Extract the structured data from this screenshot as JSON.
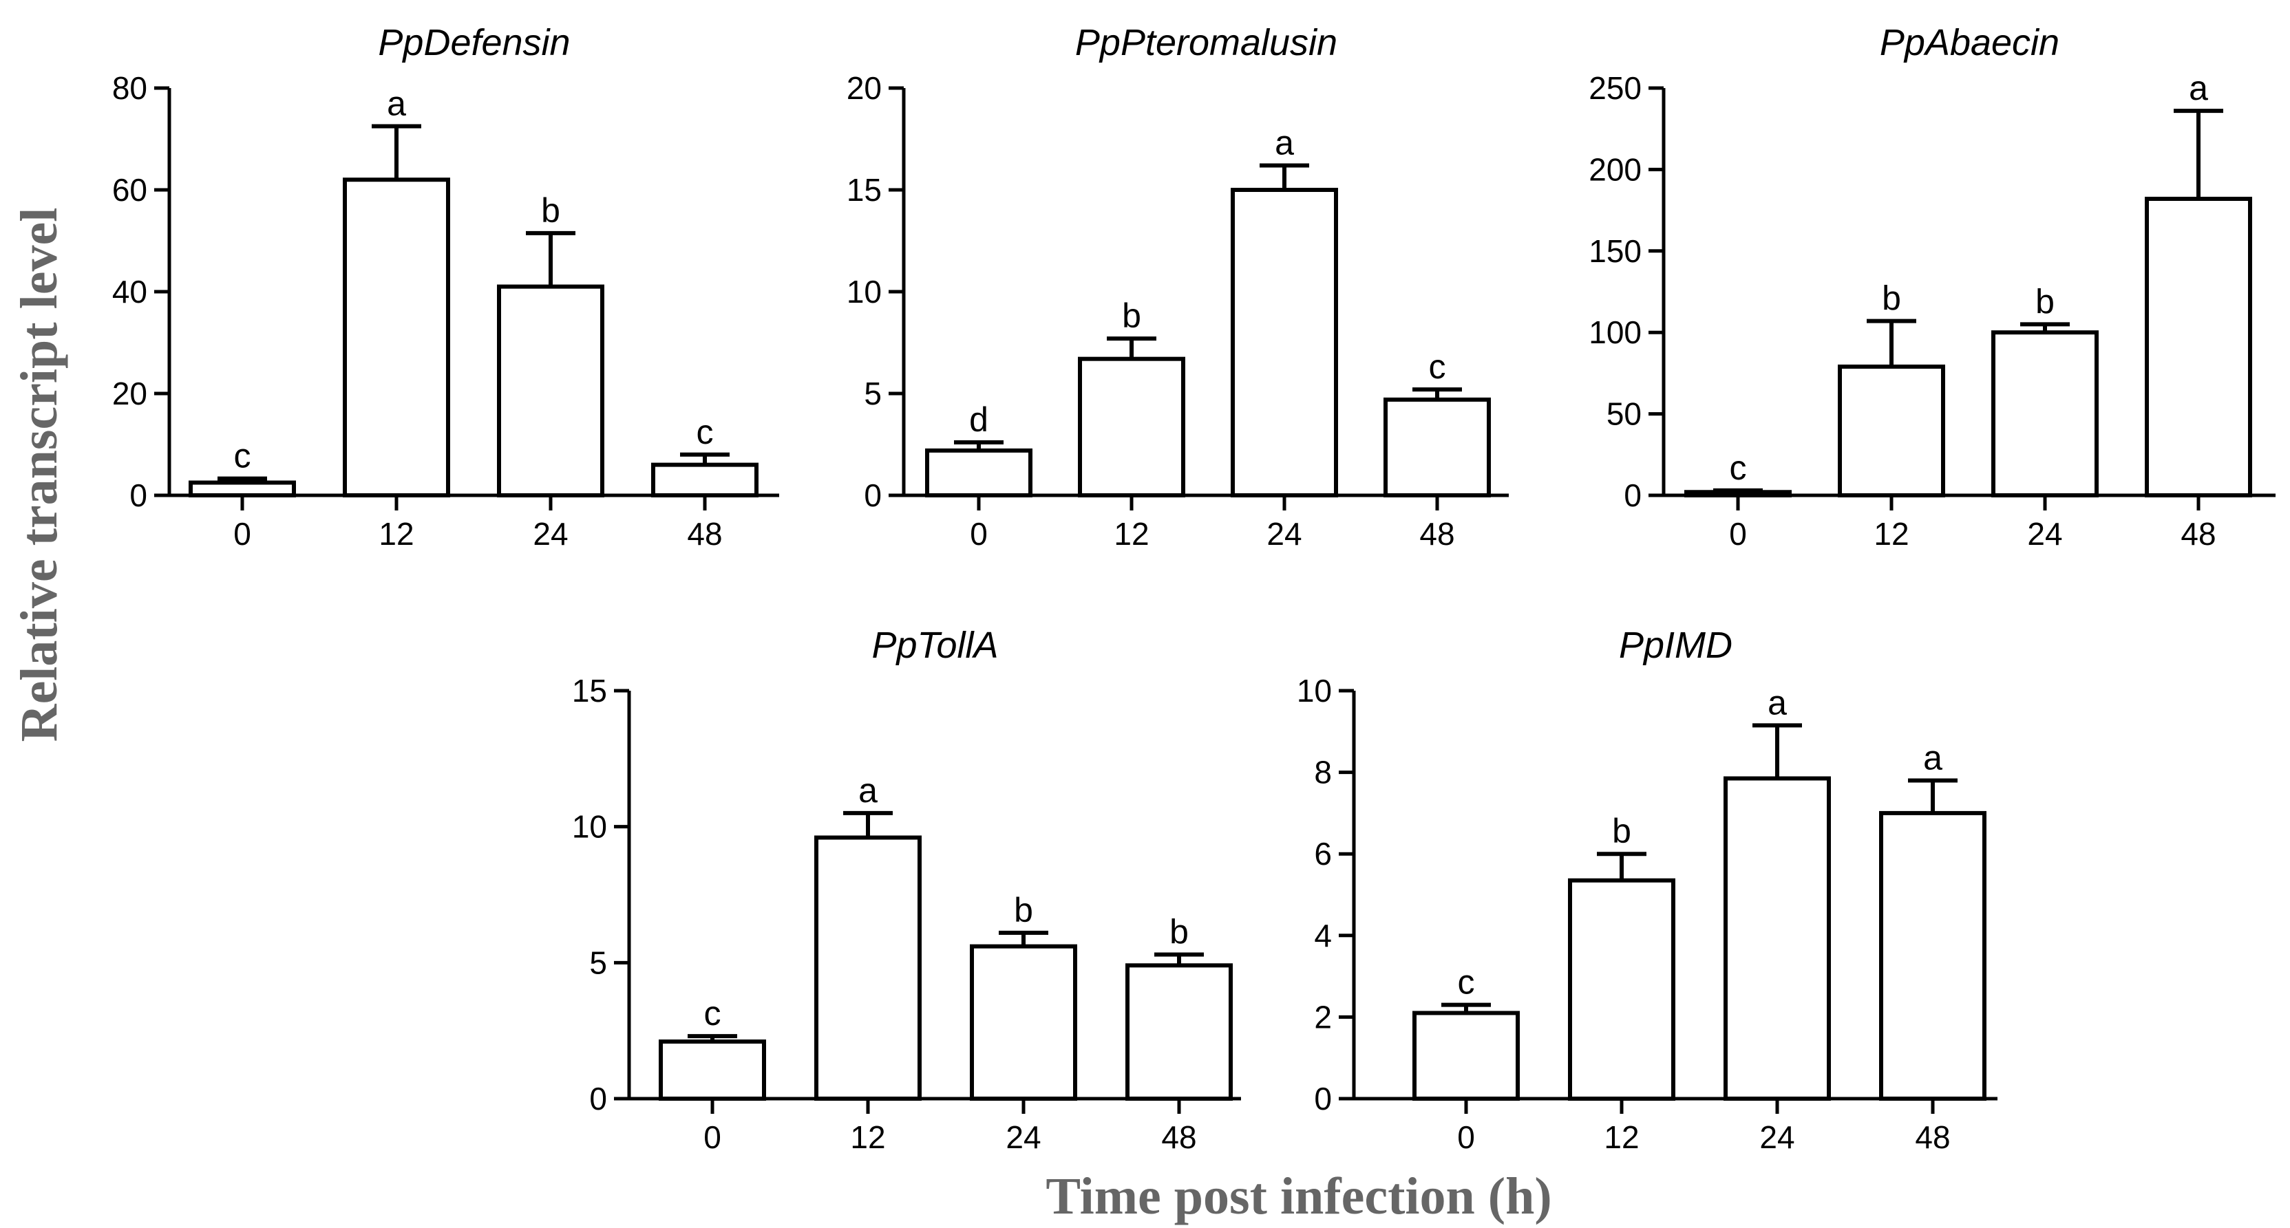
{
  "figure": {
    "ylabel": "Relative transcript level",
    "xlabel": "Time post infection (h)"
  },
  "chart_data": [
    {
      "type": "bar",
      "title": "PpDefensin",
      "categories": [
        "0",
        "12",
        "24",
        "48"
      ],
      "values": [
        2.5,
        62,
        41,
        6
      ],
      "errors": [
        0.8,
        10.5,
        10.5,
        2
      ],
      "labels": [
        "c",
        "a",
        "b",
        "c"
      ],
      "ylim": [
        0,
        80
      ],
      "yticks": [
        0,
        20,
        40,
        60,
        80
      ]
    },
    {
      "type": "bar",
      "title": "PpPteromalusin",
      "categories": [
        "0",
        "12",
        "24",
        "48"
      ],
      "values": [
        2.2,
        6.7,
        15.0,
        4.7
      ],
      "errors": [
        0.4,
        1.0,
        1.2,
        0.5
      ],
      "labels": [
        "d",
        "b",
        "a",
        "c"
      ],
      "ylim": [
        0,
        20
      ],
      "yticks": [
        0,
        5,
        10,
        15,
        20
      ]
    },
    {
      "type": "bar",
      "title": "PpAbaecin",
      "categories": [
        "0",
        "12",
        "24",
        "48"
      ],
      "values": [
        2,
        79,
        100,
        182
      ],
      "errors": [
        1,
        28,
        5,
        54
      ],
      "labels": [
        "c",
        "b",
        "b",
        "a"
      ],
      "ylim": [
        0,
        250
      ],
      "yticks": [
        0,
        50,
        100,
        150,
        200,
        250
      ]
    },
    {
      "type": "bar",
      "title": "PpTollA",
      "categories": [
        "0",
        "12",
        "24",
        "48"
      ],
      "values": [
        2.1,
        9.6,
        5.6,
        4.9
      ],
      "errors": [
        0.2,
        0.9,
        0.5,
        0.4
      ],
      "labels": [
        "c",
        "a",
        "b",
        "b"
      ],
      "ylim": [
        0,
        15
      ],
      "yticks": [
        0,
        5,
        10,
        15
      ]
    },
    {
      "type": "bar",
      "title": "PpIMD",
      "categories": [
        "0",
        "12",
        "24",
        "48"
      ],
      "values": [
        2.1,
        5.35,
        7.85,
        7.0
      ],
      "errors": [
        0.2,
        0.65,
        1.3,
        0.8
      ],
      "labels": [
        "c",
        "b",
        "a",
        "a"
      ],
      "ylim": [
        0,
        10
      ],
      "yticks": [
        0,
        2,
        4,
        6,
        8,
        10
      ]
    }
  ]
}
